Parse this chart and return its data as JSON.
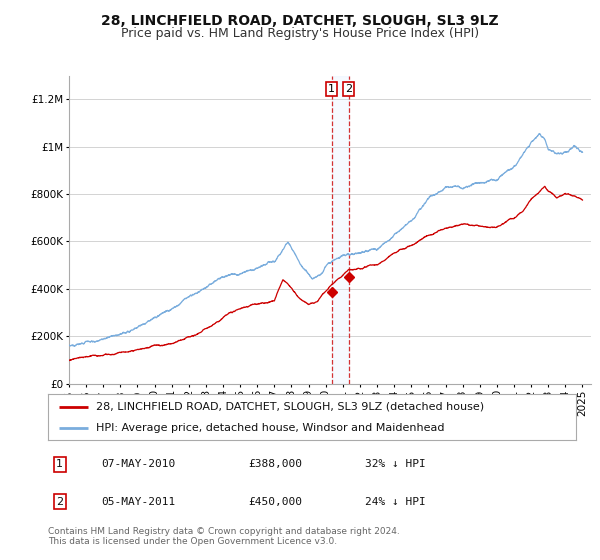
{
  "title": "28, LINCHFIELD ROAD, DATCHET, SLOUGH, SL3 9LZ",
  "subtitle": "Price paid vs. HM Land Registry's House Price Index (HPI)",
  "ylim": [
    0,
    1300000
  ],
  "yticks": [
    0,
    200000,
    400000,
    600000,
    800000,
    1000000,
    1200000
  ],
  "ytick_labels": [
    "£0",
    "£200K",
    "£400K",
    "£600K",
    "£800K",
    "£1M",
    "£1.2M"
  ],
  "xlim_start": 1995.0,
  "xlim_end": 2025.5,
  "xticks": [
    1995,
    1996,
    1997,
    1998,
    1999,
    2000,
    2001,
    2002,
    2003,
    2004,
    2005,
    2006,
    2007,
    2008,
    2009,
    2010,
    2011,
    2012,
    2013,
    2014,
    2015,
    2016,
    2017,
    2018,
    2019,
    2020,
    2021,
    2022,
    2023,
    2024,
    2025
  ],
  "sale1_date": 2010.35,
  "sale1_price": 388000,
  "sale2_date": 2011.35,
  "sale2_price": 450000,
  "red_line_color": "#cc0000",
  "blue_line_color": "#7aaddd",
  "marker_color": "#cc0000",
  "vline_color": "#cc0000",
  "vshade_color": "#ddeeff",
  "grid_color": "#cccccc",
  "background_color": "#ffffff",
  "legend_label_red": "28, LINCHFIELD ROAD, DATCHET, SLOUGH, SL3 9LZ (detached house)",
  "legend_label_blue": "HPI: Average price, detached house, Windsor and Maidenhead",
  "table_row1": [
    "1",
    "07-MAY-2010",
    "£388,000",
    "32% ↓ HPI"
  ],
  "table_row2": [
    "2",
    "05-MAY-2011",
    "£450,000",
    "24% ↓ HPI"
  ],
  "footer_text": "Contains HM Land Registry data © Crown copyright and database right 2024.\nThis data is licensed under the Open Government Licence v3.0.",
  "title_fontsize": 10,
  "subtitle_fontsize": 9,
  "tick_fontsize": 7.5,
  "legend_fontsize": 8,
  "table_fontsize": 8,
  "footer_fontsize": 6.5
}
